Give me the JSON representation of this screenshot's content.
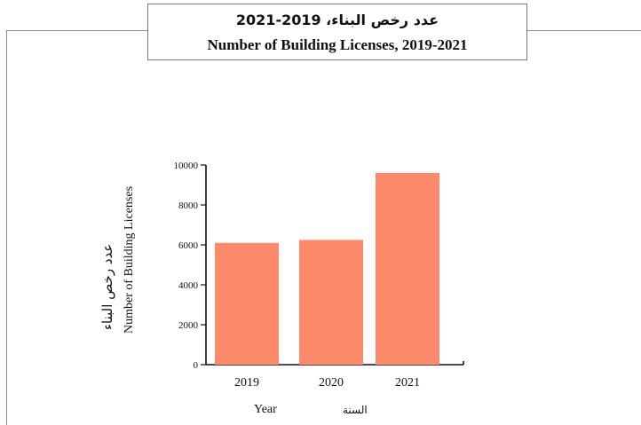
{
  "title": {
    "arabic": "عدد رخص البناء، 2019-2021",
    "english": "Number of Building Licenses, 2019-2021"
  },
  "chart_data": {
    "type": "bar",
    "categories": [
      "2019",
      "2020",
      "2021"
    ],
    "values": [
      6100,
      6250,
      9600
    ],
    "ylim": [
      0,
      10000
    ],
    "yticks": [
      0,
      2000,
      4000,
      6000,
      8000,
      10000
    ],
    "ylabel_arabic": "عدد رخص البناء",
    "ylabel_english": "Number of Building Licenses",
    "xlabel_english": "Year",
    "xlabel_arabic": "السنة",
    "bar_color": "#fc8a6b",
    "grid": false,
    "legend": "none"
  }
}
